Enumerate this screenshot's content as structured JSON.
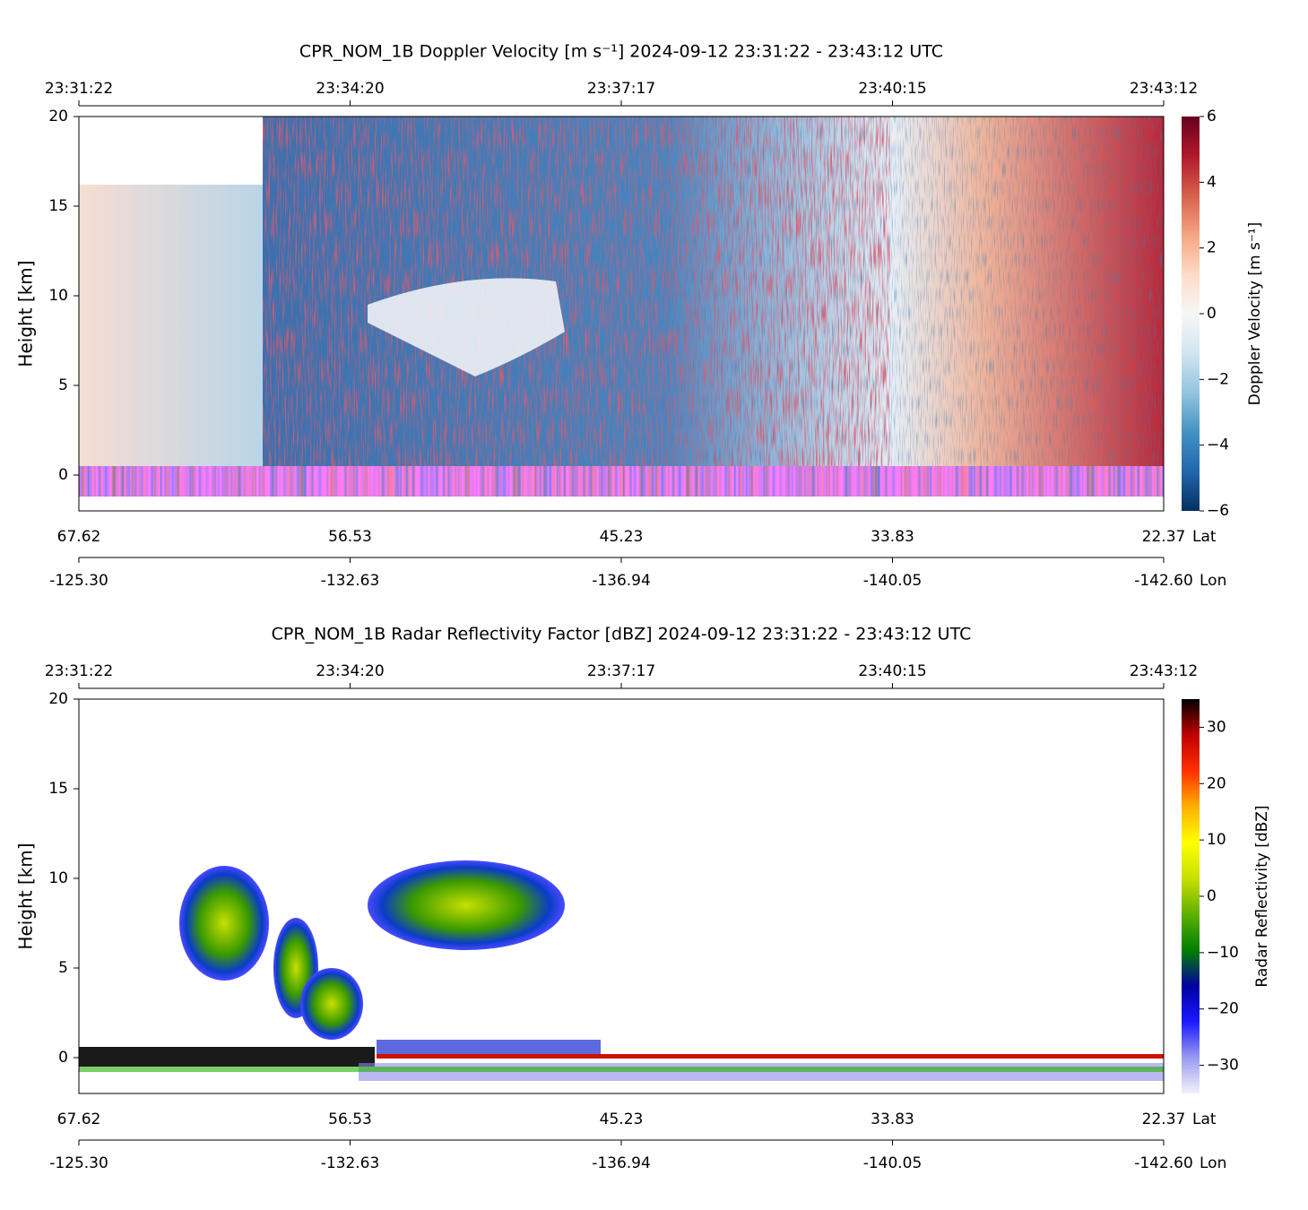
{
  "chart_data": [
    {
      "type": "heatmap",
      "title": "CPR_NOM_1B Doppler Velocity [m s⁻¹]    2024-09-12    23:31:22 - 23:43:12 UTC",
      "ylabel": "Height [km]",
      "ylim": [
        -2,
        20
      ],
      "yticks": [
        0,
        5,
        10,
        15,
        20
      ],
      "time_ticks": [
        "23:31:22",
        "23:34:20",
        "23:37:17",
        "23:40:15",
        "23:43:12"
      ],
      "lat_label": "Lat",
      "lat_ticks": [
        67.62,
        56.53,
        45.23,
        33.83,
        22.37
      ],
      "lon_label": "Lon",
      "lon_ticks": [
        {
          "value": -125.3,
          "label": "-125.30"
        },
        -132.63,
        -136.94,
        -140.05,
        {
          "value": -142.6,
          "label": "-142.60"
        }
      ],
      "colorbar": {
        "label": "Doppler Velocity [m s⁻¹]",
        "lim": [
          -6,
          6
        ],
        "ticks": [
          {
            "value": -6,
            "label": "−6"
          },
          {
            "value": -4,
            "label": "−4"
          },
          {
            "value": -2,
            "label": "−2"
          },
          0,
          2,
          4,
          6
        ],
        "colormap": [
          "#053061",
          "#2166ac",
          "#4393c3",
          "#92c5de",
          "#d1e5f0",
          "#f7f7f7",
          "#fddbc7",
          "#f4a582",
          "#d6604d",
          "#b2182b",
          "#67001f"
        ]
      }
    },
    {
      "type": "heatmap",
      "title": "CPR_NOM_1B Radar Reflectivity Factor [dBZ]    2024-09-12    23:31:22 - 23:43:12 UTC",
      "ylabel": "Height [km]",
      "ylim": [
        -2,
        20
      ],
      "yticks": [
        0,
        5,
        10,
        15,
        20
      ],
      "time_ticks": [
        "23:31:22",
        "23:34:20",
        "23:37:17",
        "23:40:15",
        "23:43:12"
      ],
      "lat_label": "Lat",
      "lat_ticks": [
        67.62,
        56.53,
        45.23,
        33.83,
        22.37
      ],
      "lon_label": "Lon",
      "lon_ticks": [
        {
          "value": -125.3,
          "label": "-125.30"
        },
        -132.63,
        -136.94,
        -140.05,
        {
          "value": -142.6,
          "label": "-142.60"
        }
      ],
      "colorbar": {
        "label": "Radar Reflectivity [dBZ]",
        "lim": [
          -35,
          35
        ],
        "ticks": [
          {
            "value": -30,
            "label": "−30"
          },
          {
            "value": -20,
            "label": "−20"
          },
          {
            "value": -10,
            "label": "−10"
          },
          0,
          10,
          20,
          30
        ],
        "colormap": [
          "#f2f2fb",
          "#9a9af0",
          "#1a1aff",
          "#0000a0",
          "#008000",
          "#5fb000",
          "#c8e000",
          "#ffff00",
          "#ffb000",
          "#ff3000",
          "#c00000",
          "#000000"
        ]
      }
    }
  ]
}
